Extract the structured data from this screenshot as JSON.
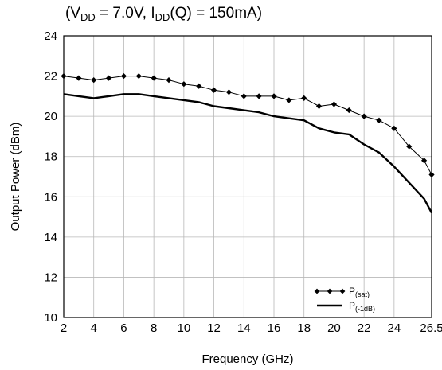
{
  "title": {
    "prefix": "(V",
    "vdd_sub": "DD",
    "mid": " = 7.0V, I",
    "idd_sub": "DD",
    "suffix": "(Q) = 150mA)"
  },
  "chart_data": {
    "type": "line",
    "title": "(VDD = 7.0V, IDD(Q) = 150mA)",
    "xlabel": "Frequency (GHz)",
    "ylabel": "Output Power (dBm)",
    "xlim": [
      2,
      26.5
    ],
    "ylim": [
      10,
      24
    ],
    "x_ticks": [
      2,
      4,
      6,
      8,
      10,
      12,
      14,
      16,
      18,
      20,
      22,
      24,
      26.5
    ],
    "x_tick_labels": [
      "2",
      "4",
      "6",
      "8",
      "10",
      "12",
      "14",
      "16",
      "18",
      "20",
      "22",
      "24",
      "26.5"
    ],
    "y_ticks": [
      10,
      12,
      14,
      16,
      18,
      20,
      22,
      24
    ],
    "y_tick_labels": [
      "10",
      "12",
      "14",
      "16",
      "18",
      "20",
      "22",
      "24"
    ],
    "grid": true,
    "legend_position": "bottom-right",
    "series": [
      {
        "name": "P(sat)",
        "legend_main": "P",
        "legend_sub": "(sat)",
        "color": "#000000",
        "marker": "diamond",
        "x": [
          2,
          3,
          4,
          5,
          6,
          7,
          8,
          9,
          10,
          11,
          12,
          13,
          14,
          15,
          16,
          17,
          18,
          19,
          20,
          21,
          22,
          23,
          24,
          25,
          26,
          26.5
        ],
        "y": [
          22.0,
          21.9,
          21.8,
          21.9,
          22.0,
          22.0,
          21.9,
          21.8,
          21.6,
          21.5,
          21.3,
          21.2,
          21.0,
          21.0,
          21.0,
          20.8,
          20.9,
          20.5,
          20.6,
          20.3,
          20.0,
          19.8,
          19.4,
          18.5,
          17.8,
          17.1
        ]
      },
      {
        "name": "P(-1dB)",
        "legend_main": "P",
        "legend_sub": "(-1dB)",
        "color": "#000000",
        "marker": "none",
        "x": [
          2,
          3,
          4,
          5,
          6,
          7,
          8,
          9,
          10,
          11,
          12,
          13,
          14,
          15,
          16,
          17,
          18,
          19,
          20,
          21,
          22,
          23,
          24,
          25,
          26,
          26.5
        ],
        "y": [
          21.1,
          21.0,
          20.9,
          21.0,
          21.1,
          21.1,
          21.0,
          20.9,
          20.8,
          20.7,
          20.5,
          20.4,
          20.3,
          20.2,
          20.0,
          19.9,
          19.8,
          19.4,
          19.2,
          19.1,
          18.6,
          18.2,
          17.5,
          16.7,
          15.9,
          15.2
        ]
      }
    ]
  }
}
